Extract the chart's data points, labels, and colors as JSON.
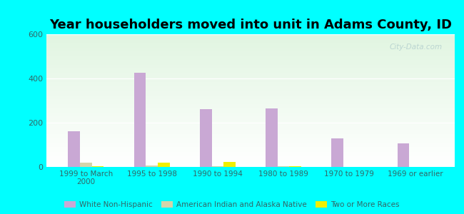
{
  "title": "Year householders moved into unit in Adams County, ID",
  "categories": [
    "1999 to March\n2000",
    "1995 to 1998",
    "1990 to 1994",
    "1980 to 1989",
    "1970 to 1979",
    "1969 or earlier"
  ],
  "series": [
    {
      "name": "White Non-Hispanic",
      "color": "#c9a8d4",
      "values": [
        160,
        425,
        260,
        265,
        130,
        105
      ]
    },
    {
      "name": "American Indian and Alaska Native",
      "color": "#d4d4aa",
      "values": [
        20,
        8,
        4,
        4,
        0,
        0
      ]
    },
    {
      "name": "Two or More Races",
      "color": "#f0f000",
      "values": [
        4,
        18,
        22,
        4,
        0,
        0
      ]
    }
  ],
  "ylim": [
    0,
    600
  ],
  "yticks": [
    0,
    200,
    400,
    600
  ],
  "bar_width": 0.18,
  "background_color": "#00ffff",
  "watermark": "City-Data.com",
  "tick_color": "#336666",
  "title_fontsize": 13
}
